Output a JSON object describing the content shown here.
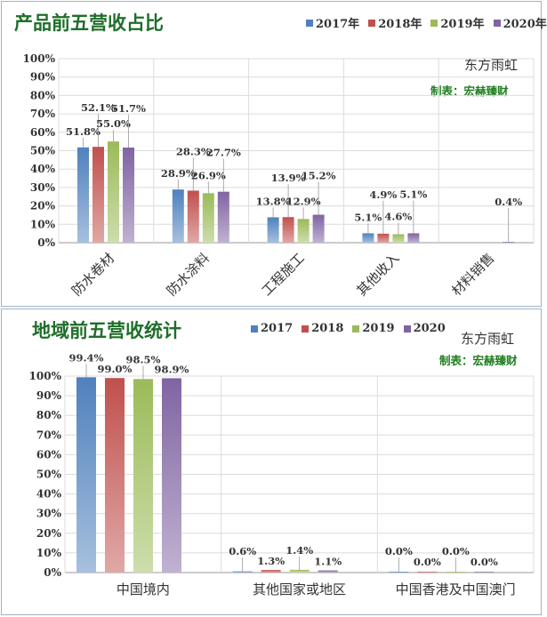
{
  "colors": {
    "s2017": "#4f81bd",
    "s2018": "#c0504d",
    "s2019": "#9bbb59",
    "s2020": "#8064a2",
    "title": "#1f6e2a",
    "maker": "#1e7d1e"
  },
  "chart_data": [
    {
      "type": "bar",
      "title": "产品前五营收占比",
      "source": "东方雨虹",
      "maker": "制表：宏赫臻财",
      "legend_position": "top-right",
      "grid": true,
      "ylim": [
        0,
        100
      ],
      "yticks": [
        "0%",
        "10%",
        "20%",
        "30%",
        "40%",
        "50%",
        "60%",
        "70%",
        "80%",
        "90%",
        "100%"
      ],
      "categories": [
        "防水卷材",
        "防水涂料",
        "工程施工",
        "其他收入",
        "材料销售"
      ],
      "series": [
        {
          "name": "2017年",
          "values": [
            51.8,
            28.9,
            13.8,
            5.1,
            null
          ],
          "labels": [
            "51.8%",
            "28.9%",
            "13.8%",
            "5.1%",
            ""
          ]
        },
        {
          "name": "2018年",
          "values": [
            52.1,
            28.3,
            13.9,
            4.9,
            null
          ],
          "labels": [
            "52.1%",
            "28.3%",
            "13.9%",
            "4.9%",
            ""
          ]
        },
        {
          "name": "2019年",
          "values": [
            55.0,
            26.9,
            12.9,
            4.6,
            null
          ],
          "labels": [
            "55.0%",
            "26.9%",
            "12.9%",
            "4.6%",
            ""
          ]
        },
        {
          "name": "2020年",
          "values": [
            51.7,
            27.7,
            15.2,
            5.1,
            0.4
          ],
          "labels": [
            "51.7%",
            "27.7%",
            "15.2%",
            "5.1%",
            "0.4%"
          ]
        }
      ]
    },
    {
      "type": "bar",
      "title": "地域前五营收统计",
      "source": "东方雨虹",
      "maker": "制表：宏赫臻财",
      "legend_position": "top-right",
      "grid": true,
      "ylim": [
        0,
        100
      ],
      "yticks": [
        "0%",
        "10%",
        "20%",
        "30%",
        "40%",
        "50%",
        "60%",
        "70%",
        "80%",
        "90%",
        "100%"
      ],
      "categories": [
        "中国境内",
        "其他国家或地区",
        "中国香港及中国澳门"
      ],
      "series": [
        {
          "name": "2017",
          "values": [
            99.4,
            0.6,
            0.0
          ],
          "labels": [
            "99.4%",
            "0.6%",
            "0.0%"
          ]
        },
        {
          "name": "2018",
          "values": [
            99.0,
            1.3,
            0.0
          ],
          "labels": [
            "99.0%",
            "1.3%",
            "0.0%"
          ]
        },
        {
          "name": "2019",
          "values": [
            98.5,
            1.4,
            0.0
          ],
          "labels": [
            "98.5%",
            "1.4%",
            "0.0%"
          ]
        },
        {
          "name": "2020",
          "values": [
            98.9,
            1.1,
            0.0
          ],
          "labels": [
            "98.9%",
            "1.1%",
            "0.0%"
          ]
        }
      ]
    }
  ]
}
